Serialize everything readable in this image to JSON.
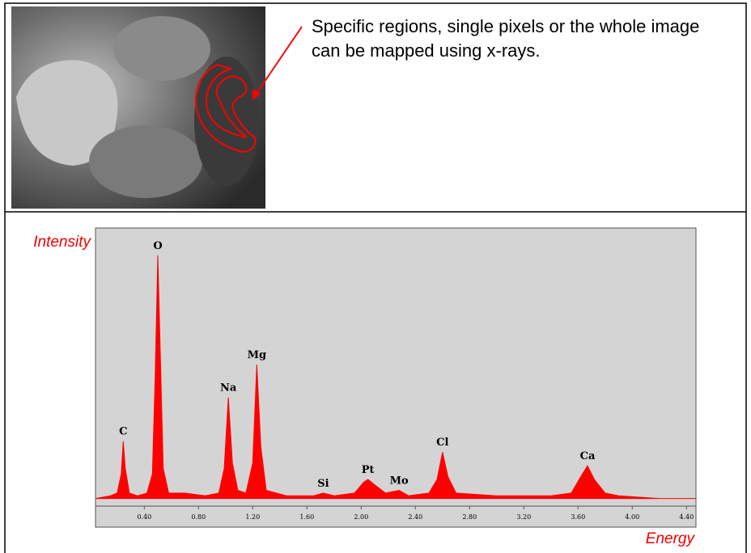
{
  "caption": "Specific regions, single pixels or the whole image can be mapped using x-rays.",
  "chart_data": {
    "type": "area",
    "y_label": "Intensity",
    "x_label": "Energy",
    "color": "#ff0000",
    "x": [
      0.04,
      0.15,
      0.2,
      0.23,
      0.245,
      0.26,
      0.29,
      0.35,
      0.42,
      0.46,
      0.48,
      0.5,
      0.52,
      0.54,
      0.58,
      0.7,
      0.85,
      0.95,
      0.99,
      1.02,
      1.05,
      1.09,
      1.15,
      1.2,
      1.23,
      1.26,
      1.3,
      1.45,
      1.65,
      1.72,
      1.8,
      1.95,
      2.02,
      2.05,
      2.1,
      2.18,
      2.28,
      2.35,
      2.5,
      2.56,
      2.6,
      2.64,
      2.7,
      3.0,
      3.4,
      3.55,
      3.62,
      3.67,
      3.72,
      3.8,
      3.9,
      4.2,
      4.47
    ],
    "values": [
      1,
      2,
      3,
      10,
      22,
      12,
      3,
      2,
      3,
      10,
      45,
      90,
      50,
      12,
      3,
      3,
      2,
      3,
      12,
      38,
      14,
      4,
      3,
      14,
      50,
      20,
      4,
      2,
      2,
      3,
      2,
      3,
      7,
      8,
      6,
      3,
      4,
      2,
      3,
      8,
      18,
      9,
      3,
      2,
      2,
      3,
      9,
      13,
      8,
      3,
      2,
      1,
      1
    ],
    "peaks": [
      {
        "label": "C",
        "x": 0.245,
        "y": 22
      },
      {
        "label": "O",
        "x": 0.5,
        "y": 90
      },
      {
        "label": "Na",
        "x": 1.02,
        "y": 38
      },
      {
        "label": "Mg",
        "x": 1.23,
        "y": 50
      },
      {
        "label": "Si",
        "x": 1.72,
        "y": 3
      },
      {
        "label": "Pt",
        "x": 2.05,
        "y": 8
      },
      {
        "label": "Mo",
        "x": 2.28,
        "y": 4
      },
      {
        "label": "Cl",
        "x": 2.6,
        "y": 18
      },
      {
        "label": "Ca",
        "x": 3.67,
        "y": 13
      }
    ],
    "xlim": [
      0.04,
      4.47
    ],
    "ylim": [
      0,
      100
    ],
    "xticks": [
      {
        "value": 0.4,
        "label": "0.40"
      },
      {
        "value": 0.8,
        "label": "0.80"
      },
      {
        "value": 1.2,
        "label": "1.20"
      },
      {
        "value": 1.6,
        "label": "1.60"
      },
      {
        "value": 2.0,
        "label": "2.00"
      },
      {
        "value": 2.4,
        "label": "2.40"
      },
      {
        "value": 2.8,
        "label": "2.80"
      },
      {
        "value": 3.2,
        "label": "3.20"
      },
      {
        "value": 3.6,
        "label": "3.60"
      },
      {
        "value": 4.0,
        "label": "4.00"
      },
      {
        "value": 4.4,
        "label": "4.40"
      }
    ]
  }
}
